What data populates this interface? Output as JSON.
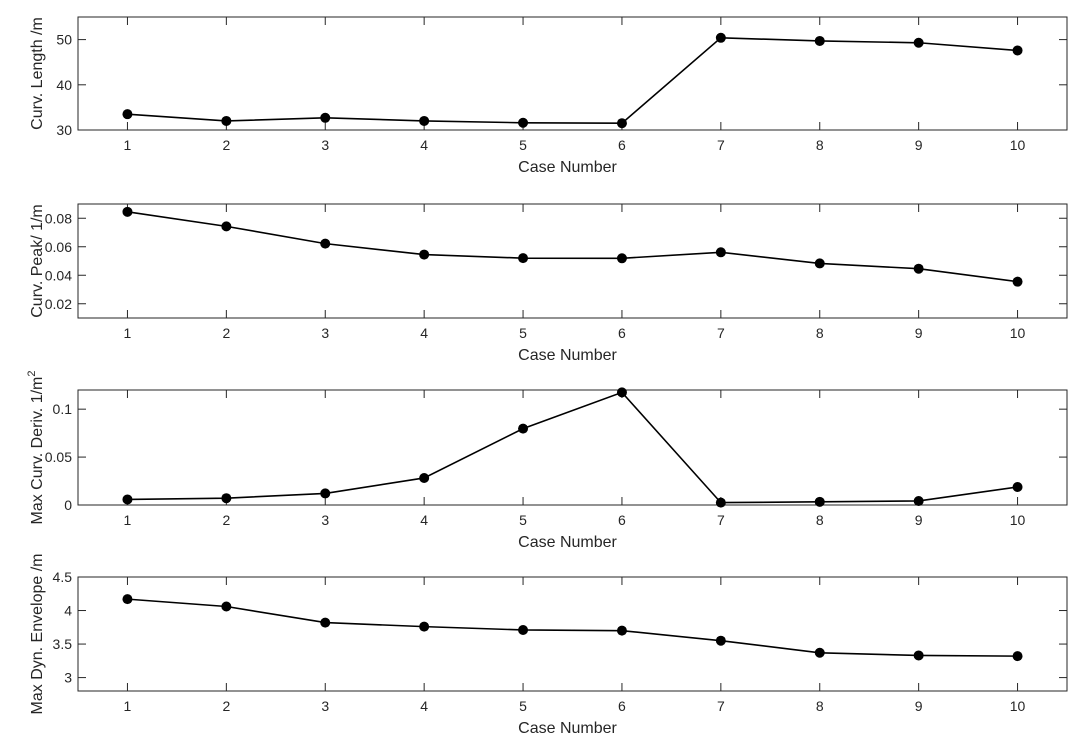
{
  "chart_data": [
    {
      "type": "line",
      "xlabel": "Case Number",
      "ylabel": "Curv. Length /m",
      "x": [
        1,
        2,
        3,
        4,
        5,
        6,
        7,
        8,
        9,
        10
      ],
      "values": [
        33.5,
        32.0,
        32.7,
        32.0,
        31.6,
        31.5,
        50.4,
        49.7,
        49.3,
        47.6
      ],
      "xlim": [
        0.5,
        10.5
      ],
      "ylim": [
        30,
        55
      ],
      "xticks": [
        "1",
        "2",
        "3",
        "4",
        "5",
        "6",
        "7",
        "8",
        "9",
        "10"
      ],
      "yticks": [
        "30",
        "40",
        "50"
      ],
      "grid": false,
      "color": "#000000"
    },
    {
      "type": "line",
      "xlabel": "Case Number",
      "ylabel": "Curv. Peak/ 1/m",
      "x": [
        1,
        2,
        3,
        4,
        5,
        6,
        7,
        8,
        9,
        10
      ],
      "values": [
        0.0845,
        0.0743,
        0.0622,
        0.0545,
        0.052,
        0.0519,
        0.0561,
        0.0483,
        0.0446,
        0.0355
      ],
      "xlim": [
        0.5,
        10.5
      ],
      "ylim": [
        0.01,
        0.09
      ],
      "xticks": [
        "1",
        "2",
        "3",
        "4",
        "5",
        "6",
        "7",
        "8",
        "9",
        "10"
      ],
      "yticks": [
        "0.02",
        "0.04",
        "0.06",
        "0.08"
      ],
      "grid": false,
      "color": "#000000"
    },
    {
      "type": "line",
      "xlabel": "Case Number",
      "ylabel": "Max Curv. Deriv. 1/m",
      "ylabel_superscript": "2",
      "x": [
        1,
        2,
        3,
        4,
        5,
        6,
        7,
        8,
        9,
        10
      ],
      "values": [
        0.0058,
        0.0071,
        0.0121,
        0.0282,
        0.0797,
        0.1175,
        0.0025,
        0.0033,
        0.0042,
        0.0188
      ],
      "xlim": [
        0.5,
        10.5
      ],
      "ylim": [
        0,
        0.12
      ],
      "xticks": [
        "1",
        "2",
        "3",
        "4",
        "5",
        "6",
        "7",
        "8",
        "9",
        "10"
      ],
      "yticks": [
        "0",
        "0.05",
        "0.1"
      ],
      "grid": false,
      "color": "#000000"
    },
    {
      "type": "line",
      "xlabel": "Case Number",
      "ylabel": "Max Dyn. Envelope /m",
      "x": [
        1,
        2,
        3,
        4,
        5,
        6,
        7,
        8,
        9,
        10
      ],
      "values": [
        4.17,
        4.06,
        3.82,
        3.76,
        3.71,
        3.7,
        3.55,
        3.37,
        3.33,
        3.32
      ],
      "xlim": [
        0.5,
        10.5
      ],
      "ylim": [
        2.8,
        4.5
      ],
      "xticks": [
        "1",
        "2",
        "3",
        "4",
        "5",
        "6",
        "7",
        "8",
        "9",
        "10"
      ],
      "yticks": [
        "3",
        "3.5",
        "4",
        "4.5"
      ],
      "grid": false,
      "color": "#000000"
    }
  ]
}
